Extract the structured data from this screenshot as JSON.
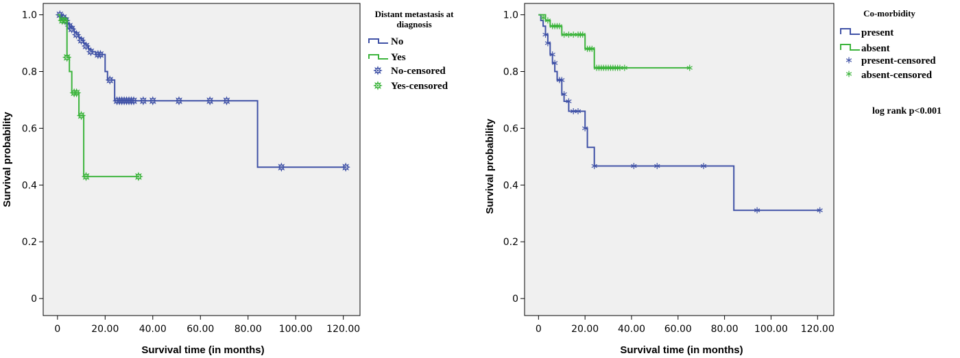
{
  "chart_data": [
    {
      "type": "line",
      "subtype": "kaplan-meier",
      "xlabel": "Survival time (in months)",
      "ylabel": "Survival probability",
      "xlim": [
        -6,
        127
      ],
      "ylim": [
        -0.06,
        1.04
      ],
      "xticks": [
        0,
        20,
        40,
        60,
        80,
        100,
        120
      ],
      "xtick_labels": [
        "0",
        "20.00",
        "40.00",
        "60.00",
        "80.00",
        "100.00",
        "120.00"
      ],
      "yticks": [
        0,
        0.2,
        0.4,
        0.6,
        0.8,
        1.0
      ],
      "ytick_labels": [
        "0",
        "0.2",
        "0.4",
        "0.6",
        "0.8",
        "1.0"
      ],
      "legend_title_lines": [
        "Distant metastasis at",
        "diagnosis"
      ],
      "legend_position": "right",
      "background_color": "#f0f0f0",
      "censor_marker": "star",
      "series": [
        {
          "name": "No",
          "censored_name": "No-censored",
          "color": "#3f51a6",
          "steps": [
            [
              0,
              1.0
            ],
            [
              2,
              0.99
            ],
            [
              3,
              0.98
            ],
            [
              4,
              0.97
            ],
            [
              5,
              0.96
            ],
            [
              6,
              0.95
            ],
            [
              7,
              0.94
            ],
            [
              8,
              0.93
            ],
            [
              9,
              0.92
            ],
            [
              10,
              0.91
            ],
            [
              11,
              0.9
            ],
            [
              12,
              0.89
            ],
            [
              13,
              0.88
            ],
            [
              14,
              0.87
            ],
            [
              16,
              0.86
            ],
            [
              20,
              0.8
            ],
            [
              21,
              0.77
            ],
            [
              24,
              0.697
            ],
            [
              84,
              0.463
            ],
            [
              121,
              0.463
            ]
          ],
          "censored_points": [
            [
              1,
              1.0
            ],
            [
              2.5,
              0.99
            ],
            [
              3.5,
              0.98
            ],
            [
              5,
              0.96
            ],
            [
              6,
              0.95
            ],
            [
              8,
              0.93
            ],
            [
              10,
              0.91
            ],
            [
              12,
              0.89
            ],
            [
              14,
              0.87
            ],
            [
              17,
              0.86
            ],
            [
              18,
              0.86
            ],
            [
              22,
              0.77
            ],
            [
              25,
              0.697
            ],
            [
              26,
              0.697
            ],
            [
              27,
              0.697
            ],
            [
              28,
              0.697
            ],
            [
              29,
              0.697
            ],
            [
              30,
              0.697
            ],
            [
              31,
              0.697
            ],
            [
              32,
              0.697
            ],
            [
              36,
              0.697
            ],
            [
              40,
              0.697
            ],
            [
              51,
              0.697
            ],
            [
              64,
              0.697
            ],
            [
              71,
              0.697
            ],
            [
              94,
              0.463
            ],
            [
              121,
              0.463
            ]
          ]
        },
        {
          "name": "Yes",
          "censored_name": "Yes-censored",
          "color": "#3cb43c",
          "steps": [
            [
              0,
              1.0
            ],
            [
              1,
              0.98
            ],
            [
              4,
              0.85
            ],
            [
              5,
              0.8
            ],
            [
              6,
              0.725
            ],
            [
              9,
              0.645
            ],
            [
              11,
              0.43
            ],
            [
              34,
              0.43
            ]
          ],
          "censored_points": [
            [
              2,
              0.98
            ],
            [
              3,
              0.98
            ],
            [
              4,
              0.85
            ],
            [
              7,
              0.725
            ],
            [
              8,
              0.725
            ],
            [
              10,
              0.645
            ],
            [
              12,
              0.43
            ],
            [
              34,
              0.43
            ]
          ]
        }
      ]
    },
    {
      "type": "line",
      "subtype": "kaplan-meier",
      "xlabel": "Survival time (in months)",
      "ylabel": "Survival probability",
      "xlim": [
        -6,
        127
      ],
      "ylim": [
        -0.06,
        1.04
      ],
      "xticks": [
        0,
        20,
        40,
        60,
        80,
        100,
        120
      ],
      "xtick_labels": [
        "0",
        "20.00",
        "40.00",
        "60.00",
        "80.00",
        "100.00",
        "120.00"
      ],
      "yticks": [
        0,
        0.2,
        0.4,
        0.6,
        0.8,
        1.0
      ],
      "ytick_labels": [
        "0",
        "0.2",
        "0.4",
        "0.6",
        "0.8",
        "1.0"
      ],
      "legend_title_lines": [
        "Co-morbidity"
      ],
      "legend_position": "right",
      "annotation": "log rank p<0.001",
      "background_color": "#f0f0f0",
      "censor_marker": "asterisk",
      "series": [
        {
          "name": "present",
          "censored_name": "present-censored",
          "color": "#3f51a6",
          "steps": [
            [
              0,
              1.0
            ],
            [
              1,
              0.98
            ],
            [
              2,
              0.96
            ],
            [
              3,
              0.93
            ],
            [
              4,
              0.9
            ],
            [
              5,
              0.86
            ],
            [
              6,
              0.83
            ],
            [
              7,
              0.8
            ],
            [
              8,
              0.77
            ],
            [
              10,
              0.72
            ],
            [
              11,
              0.695
            ],
            [
              13,
              0.66
            ],
            [
              20,
              0.6
            ],
            [
              21,
              0.533
            ],
            [
              24,
              0.467
            ],
            [
              84,
              0.311
            ],
            [
              121,
              0.311
            ]
          ],
          "censored_points": [
            [
              3,
              0.93
            ],
            [
              4,
              0.9
            ],
            [
              6,
              0.86
            ],
            [
              7,
              0.83
            ],
            [
              9,
              0.77
            ],
            [
              10,
              0.77
            ],
            [
              11,
              0.72
            ],
            [
              13,
              0.695
            ],
            [
              15,
              0.66
            ],
            [
              17,
              0.66
            ],
            [
              20,
              0.6
            ],
            [
              24,
              0.467
            ],
            [
              41,
              0.467
            ],
            [
              51,
              0.467
            ],
            [
              71,
              0.467
            ],
            [
              94,
              0.311
            ],
            [
              121,
              0.311
            ]
          ]
        },
        {
          "name": "absent",
          "censored_name": "absent-censored",
          "color": "#3cb43c",
          "steps": [
            [
              0,
              1.0
            ],
            [
              3,
              0.98
            ],
            [
              5,
              0.96
            ],
            [
              10,
              0.93
            ],
            [
              20,
              0.88
            ],
            [
              24,
              0.813
            ],
            [
              65,
              0.813
            ]
          ],
          "censored_points": [
            [
              2,
              0.99
            ],
            [
              4,
              0.98
            ],
            [
              6,
              0.96
            ],
            [
              7,
              0.96
            ],
            [
              8,
              0.96
            ],
            [
              9,
              0.96
            ],
            [
              11,
              0.93
            ],
            [
              13,
              0.93
            ],
            [
              15,
              0.93
            ],
            [
              17,
              0.93
            ],
            [
              18,
              0.93
            ],
            [
              19,
              0.93
            ],
            [
              21,
              0.88
            ],
            [
              22,
              0.88
            ],
            [
              23,
              0.88
            ],
            [
              25,
              0.813
            ],
            [
              26,
              0.813
            ],
            [
              27,
              0.813
            ],
            [
              28,
              0.813
            ],
            [
              29,
              0.813
            ],
            [
              30,
              0.813
            ],
            [
              31,
              0.813
            ],
            [
              32,
              0.813
            ],
            [
              33,
              0.813
            ],
            [
              34,
              0.813
            ],
            [
              35,
              0.813
            ],
            [
              37,
              0.813
            ],
            [
              65,
              0.813
            ]
          ]
        }
      ]
    }
  ]
}
